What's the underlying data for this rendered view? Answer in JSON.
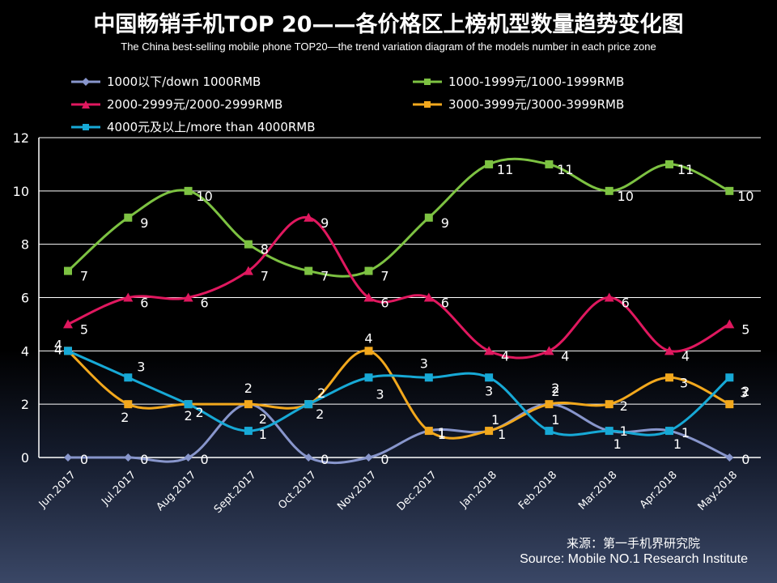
{
  "chart_data": {
    "type": "line",
    "title": "中国畅销手机TOP 20——各价格区上榜机型数量趋势变化图",
    "subtitle": "The China best-selling mobile phone TOP20—the trend variation diagram of the models number in each price zone",
    "categories": [
      "Jun.2017",
      "Jul.2017",
      "Aug.2017",
      "Sept.2017",
      "Oct.2017",
      "Nov.2017",
      "Dec.2017",
      "Jan.2018",
      "Feb.2018",
      "Mar.2018",
      "Apr.2018",
      "May.2018"
    ],
    "ylim": [
      0,
      12
    ],
    "yticks": [
      "0",
      "2",
      "4",
      "6",
      "8",
      "10",
      "12"
    ],
    "grid": true,
    "series": [
      {
        "name": "1000以下/down 1000RMB",
        "color": "#8896cc",
        "marker": "diamond",
        "values": [
          0,
          0,
          0,
          2,
          0,
          0,
          1,
          1,
          2,
          1,
          1,
          0
        ]
      },
      {
        "name": "1000-1999元/1000-1999RMB",
        "color": "#7dc242",
        "marker": "square",
        "values": [
          7,
          9,
          10,
          8,
          7,
          7,
          9,
          11,
          11,
          10,
          11,
          10
        ]
      },
      {
        "name": "2000-2999元/2000-2999RMB",
        "color": "#e0185f",
        "marker": "triangle",
        "values": [
          5,
          6,
          6,
          7,
          9,
          6,
          6,
          4,
          4,
          6,
          4,
          5
        ]
      },
      {
        "name": "3000-3999元/3000-3999RMB",
        "color": "#f2a81d",
        "marker": "square",
        "values": [
          4,
          2,
          2,
          2,
          2,
          4,
          1,
          1,
          2,
          2,
          3,
          2
        ]
      },
      {
        "name": "4000元及以上/more than 4000RMB",
        "color": "#17a9d6",
        "marker": "square",
        "values": [
          4,
          3,
          2,
          1,
          2,
          3,
          3,
          3,
          1,
          1,
          1,
          3
        ]
      }
    ],
    "source_cn": "来源：第一手机界研究院",
    "source_en": "Source: Mobile NO.1 Research Institute"
  }
}
